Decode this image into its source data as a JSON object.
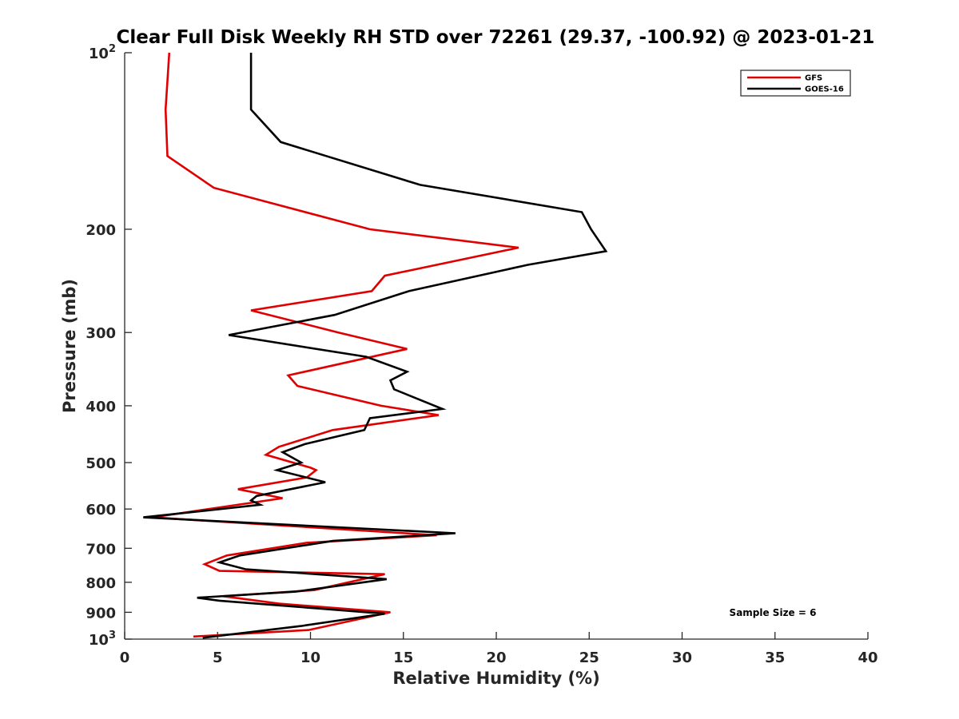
{
  "chart_data": {
    "type": "line",
    "title": "Clear Full Disk Weekly RH STD over 72261 (29.37, -100.92) @ 2023-01-21",
    "xlabel": "Relative Humidity (%)",
    "ylabel": "Pressure (mb)",
    "xlim": [
      0,
      40
    ],
    "ylim": [
      1000,
      100
    ],
    "yscale": "log",
    "grid": false,
    "legend_position": "top-right",
    "x_ticks": [
      "0",
      "5",
      "10",
      "15",
      "20",
      "25",
      "30",
      "35",
      "40"
    ],
    "y_ticks": [
      {
        "value": 100,
        "base": "10",
        "exp": "2"
      },
      {
        "value": 200,
        "label": "200"
      },
      {
        "value": 300,
        "label": "300"
      },
      {
        "value": 400,
        "label": "400"
      },
      {
        "value": 500,
        "label": "500"
      },
      {
        "value": 600,
        "label": "600"
      },
      {
        "value": 700,
        "label": "700"
      },
      {
        "value": 800,
        "label": "800"
      },
      {
        "value": 900,
        "label": "900"
      },
      {
        "value": 1000,
        "base": "10",
        "exp": "3"
      }
    ],
    "annotation": "Sample Size = 6",
    "series": [
      {
        "name": "GFS",
        "color": "#e00000",
        "points": [
          [
            2.4,
            100
          ],
          [
            2.2,
            125
          ],
          [
            2.3,
            150
          ],
          [
            4.8,
            170
          ],
          [
            13.2,
            200
          ],
          [
            21.2,
            215
          ],
          [
            14.0,
            240
          ],
          [
            13.3,
            255
          ],
          [
            6.8,
            275
          ],
          [
            11.5,
            300
          ],
          [
            15.2,
            320
          ],
          [
            8.8,
            355
          ],
          [
            9.3,
            370
          ],
          [
            13.8,
            400
          ],
          [
            16.9,
            415
          ],
          [
            11.2,
            440
          ],
          [
            8.3,
            470
          ],
          [
            7.6,
            485
          ],
          [
            10.0,
            510
          ],
          [
            10.3,
            515
          ],
          [
            9.8,
            530
          ],
          [
            6.1,
            555
          ],
          [
            8.5,
            575
          ],
          [
            5.3,
            595
          ],
          [
            1.5,
            620
          ],
          [
            16.8,
            665
          ],
          [
            9.8,
            685
          ],
          [
            5.5,
            720
          ],
          [
            4.3,
            745
          ],
          [
            5.1,
            765
          ],
          [
            14.0,
            775
          ],
          [
            10.2,
            825
          ],
          [
            5.3,
            845
          ],
          [
            8.3,
            870
          ],
          [
            14.3,
            900
          ],
          [
            9.9,
            965
          ],
          [
            3.7,
            990
          ]
        ]
      },
      {
        "name": "GOES-16",
        "color": "#000000",
        "points": [
          [
            6.8,
            100
          ],
          [
            6.8,
            125
          ],
          [
            8.4,
            142
          ],
          [
            15.9,
            168
          ],
          [
            24.6,
            187
          ],
          [
            25.1,
            200
          ],
          [
            25.9,
            218
          ],
          [
            21.7,
            230
          ],
          [
            15.3,
            255
          ],
          [
            11.3,
            280
          ],
          [
            5.6,
            303
          ],
          [
            13.0,
            330
          ],
          [
            15.2,
            350
          ],
          [
            14.3,
            362
          ],
          [
            14.5,
            375
          ],
          [
            17.1,
            405
          ],
          [
            13.2,
            420
          ],
          [
            12.9,
            440
          ],
          [
            9.7,
            465
          ],
          [
            8.5,
            480
          ],
          [
            9.5,
            500
          ],
          [
            8.2,
            515
          ],
          [
            10.8,
            540
          ],
          [
            7.1,
            570
          ],
          [
            6.8,
            580
          ],
          [
            7.3,
            590
          ],
          [
            1.0,
            620
          ],
          [
            17.8,
            660
          ],
          [
            11.2,
            680
          ],
          [
            6.2,
            720
          ],
          [
            5.1,
            740
          ],
          [
            6.5,
            760
          ],
          [
            14.1,
            790
          ],
          [
            9.2,
            830
          ],
          [
            3.9,
            850
          ],
          [
            5.1,
            860
          ],
          [
            14.0,
            905
          ],
          [
            9.5,
            950
          ],
          [
            4.2,
            995
          ]
        ]
      }
    ]
  }
}
